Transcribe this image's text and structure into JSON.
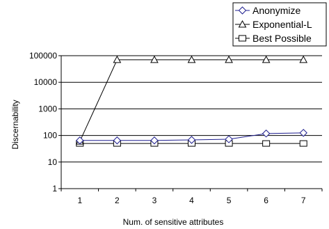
{
  "chart_data": {
    "type": "line",
    "title": "",
    "xlabel": "Num. of sensitive attributes",
    "ylabel": "Discernability",
    "x": [
      1,
      2,
      3,
      4,
      5,
      6,
      7
    ],
    "y_scale": "log",
    "ylim": [
      1,
      100000
    ],
    "y_ticks": [
      "1",
      "10",
      "100",
      "1000",
      "10000",
      "100000"
    ],
    "grid": "horizontal",
    "legend_position": "top-right",
    "series": [
      {
        "name": "Anonymize",
        "marker": "diamond",
        "color": "#1f1f8f",
        "values": [
          65,
          65,
          65,
          68,
          72,
          118,
          125
        ]
      },
      {
        "name": "Exponential-L",
        "marker": "triangle",
        "color": "#000000",
        "values": [
          60,
          70000,
          70000,
          70000,
          70000,
          70000,
          70000
        ]
      },
      {
        "name": "Best Possible",
        "marker": "square",
        "color": "#000000",
        "values": [
          50,
          50,
          50,
          50,
          50,
          50,
          50
        ]
      }
    ]
  }
}
